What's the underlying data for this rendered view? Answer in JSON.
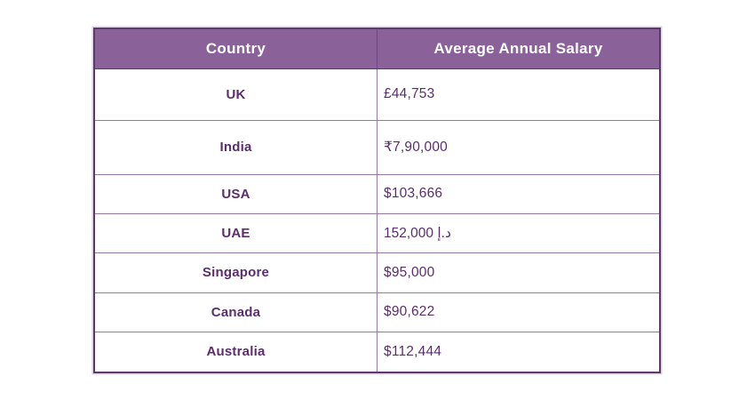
{
  "chart_data": {
    "type": "table",
    "columns": [
      "Country",
      "Average Annual Salary"
    ],
    "rows": [
      {
        "country": "UK",
        "salary": "£44,753"
      },
      {
        "country": "India",
        "salary": "₹7,90,000"
      },
      {
        "country": "USA",
        "salary": "$103,666"
      },
      {
        "country": "UAE",
        "salary": "152,000 د.إ"
      },
      {
        "country": "Singapore",
        "salary": "$95,000"
      },
      {
        "country": "Canada",
        "salary": "$90,622"
      },
      {
        "country": "Australia",
        "salary": "$112,444"
      }
    ]
  },
  "colors": {
    "header_bg": "#8a6299",
    "header_text": "#ffffff",
    "body_text": "#5b2d6e",
    "border_outer": "#5c3a6e",
    "border_inner": "#9678a6",
    "header_divider": "#6d4880",
    "background": "#ffffff"
  }
}
